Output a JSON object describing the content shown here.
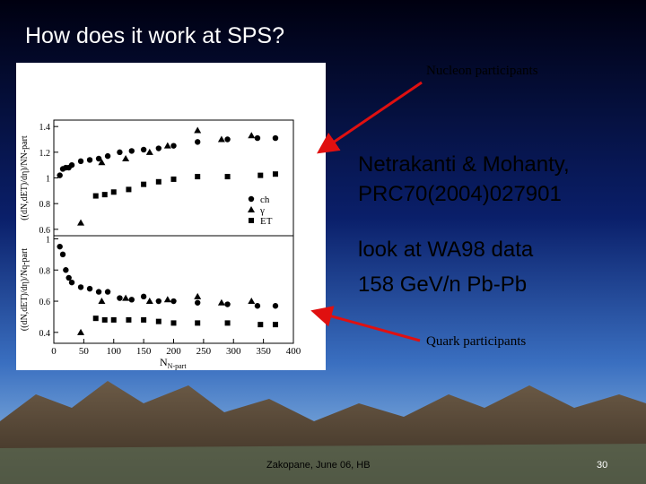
{
  "title": "How does it work at SPS?",
  "annotations": [
    "Nucleon participants",
    "Quark participants"
  ],
  "blocks": [
    [
      "Netrakanti & Mohanty,",
      "PRC70(2004)027901"
    ],
    [
      "look at WA98 data",
      "158 GeV/n Pb-Pb"
    ]
  ],
  "footer": {
    "left": "Zakopane, June 06, HB",
    "page": "30"
  },
  "chart_data": [
    {
      "type": "scatter",
      "ylabel": "((dN,dET)/dη)/NN-part",
      "xlim": [
        0,
        400
      ],
      "ylim": [
        0.55,
        1.45
      ],
      "yticks": [
        0.6,
        0.8,
        1,
        1.2,
        1.4
      ],
      "series": [
        {
          "name": "ch",
          "marker": "circle",
          "color": "#000000",
          "x": [
            10,
            15,
            20,
            25,
            30,
            45,
            60,
            75,
            90,
            110,
            130,
            150,
            175,
            200,
            240,
            290,
            340,
            370
          ],
          "values": [
            1.02,
            1.07,
            1.08,
            1.08,
            1.1,
            1.13,
            1.14,
            1.15,
            1.17,
            1.2,
            1.21,
            1.22,
            1.23,
            1.25,
            1.28,
            1.3,
            1.31,
            1.31
          ]
        },
        {
          "name": "γ",
          "marker": "triangle",
          "color": "#000000",
          "x": [
            45,
            80,
            120,
            160,
            190,
            240,
            280,
            330
          ],
          "values": [
            0.65,
            1.12,
            1.15,
            1.2,
            1.25,
            1.37,
            1.3,
            1.33
          ]
        },
        {
          "name": "ET",
          "marker": "square",
          "color": "#000000",
          "x": [
            70,
            85,
            100,
            125,
            150,
            175,
            200,
            240,
            290,
            345,
            370
          ],
          "values": [
            0.86,
            0.87,
            0.89,
            0.91,
            0.95,
            0.97,
            0.99,
            1.01,
            1.01,
            1.02,
            1.03
          ]
        }
      ]
    },
    {
      "type": "scatter",
      "ylabel": "((dN,dET)/dη)/Nq-part",
      "xlabel": "N",
      "xlabel_subscript": "N-part",
      "xlim": [
        0,
        400
      ],
      "ylim": [
        0.33,
        1.02
      ],
      "xticks": [
        0,
        50,
        100,
        150,
        200,
        250,
        300,
        350,
        400
      ],
      "yticks": [
        0.4,
        0.6,
        0.8,
        1
      ],
      "series": [
        {
          "marker": "circle",
          "color": "#000000",
          "x": [
            10,
            15,
            20,
            25,
            30,
            45,
            60,
            75,
            90,
            110,
            130,
            150,
            175,
            200,
            240,
            290,
            340,
            370
          ],
          "values": [
            0.95,
            0.9,
            0.8,
            0.75,
            0.72,
            0.69,
            0.68,
            0.66,
            0.66,
            0.62,
            0.61,
            0.63,
            0.6,
            0.6,
            0.59,
            0.58,
            0.57,
            0.57
          ]
        },
        {
          "marker": "triangle",
          "color": "#000000",
          "x": [
            45,
            80,
            120,
            160,
            190,
            240,
            280,
            330
          ],
          "values": [
            0.4,
            0.6,
            0.62,
            0.6,
            0.61,
            0.63,
            0.59,
            0.6
          ]
        },
        {
          "marker": "square",
          "color": "#000000",
          "x": [
            70,
            85,
            100,
            125,
            150,
            175,
            200,
            240,
            290,
            345,
            370
          ],
          "values": [
            0.49,
            0.48,
            0.48,
            0.48,
            0.48,
            0.47,
            0.46,
            0.46,
            0.46,
            0.45,
            0.45
          ]
        }
      ]
    }
  ]
}
